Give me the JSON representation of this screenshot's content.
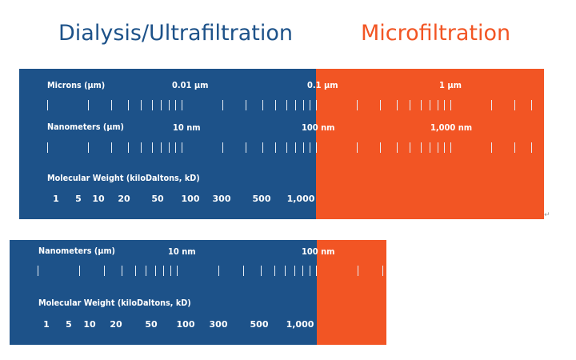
{
  "headings": {
    "left": "Dialysis/Ultrafiltration",
    "right": "Microfiltration",
    "left_color": "#1d5289",
    "right_color": "#f25524"
  },
  "colors": {
    "blue": "#1d5289",
    "orange": "#f25524"
  },
  "top_panel": {
    "microns_label": "Microns (μm)",
    "microns_values": [
      "0.01 μm",
      "0.1 μm",
      "1 μm"
    ],
    "nanometers_label": "Nanometers (μm)",
    "nanometer_values": [
      "10 nm",
      "100 nm",
      "1,000 nm"
    ],
    "mw_label": "Molecular Weight (kiloDaltons, kD)",
    "mw_values": [
      "1",
      "5",
      "10",
      "20",
      "50",
      "100",
      "300",
      "500",
      "1,000"
    ]
  },
  "bottom_panel": {
    "nanometers_label": "Nanometers (μm)",
    "nanometer_values": [
      "10 nm",
      "100 nm"
    ],
    "mw_label": "Molecular Weight (kiloDaltons, kD)",
    "mw_values": [
      "1",
      "5",
      "10",
      "20",
      "50",
      "100",
      "300",
      "500",
      "1,000"
    ]
  },
  "return_mark": "↵"
}
